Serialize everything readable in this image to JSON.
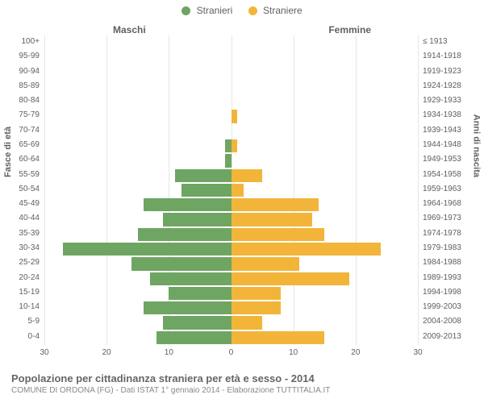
{
  "chart": {
    "type": "population-pyramid",
    "legend": [
      {
        "label": "Stranieri",
        "color": "#6ea562"
      },
      {
        "label": "Straniere",
        "color": "#f2b53a"
      }
    ],
    "column_headers": {
      "left": "Maschi",
      "right": "Femmine"
    },
    "axis_titles": {
      "left": "Fasce di età",
      "right": "Anni di nascita"
    },
    "colors": {
      "male_bar": "#6ea562",
      "female_bar": "#f2b53a",
      "grid": "#e6e6e6",
      "center_dash": "#8a6d3b",
      "text": "#606060",
      "background": "#ffffff"
    },
    "xlim": 30,
    "xtick_step": 10,
    "xticks": [
      30,
      20,
      10,
      0,
      10,
      20,
      30
    ],
    "age_bands": [
      {
        "age": "100+",
        "birth": "≤ 1913",
        "m": 0,
        "f": 0
      },
      {
        "age": "95-99",
        "birth": "1914-1918",
        "m": 0,
        "f": 0
      },
      {
        "age": "90-94",
        "birth": "1919-1923",
        "m": 0,
        "f": 0
      },
      {
        "age": "85-89",
        "birth": "1924-1928",
        "m": 0,
        "f": 0
      },
      {
        "age": "80-84",
        "birth": "1929-1933",
        "m": 0,
        "f": 0
      },
      {
        "age": "75-79",
        "birth": "1934-1938",
        "m": 0,
        "f": 1
      },
      {
        "age": "70-74",
        "birth": "1939-1943",
        "m": 0,
        "f": 0
      },
      {
        "age": "65-69",
        "birth": "1944-1948",
        "m": 1,
        "f": 1
      },
      {
        "age": "60-64",
        "birth": "1949-1953",
        "m": 1,
        "f": 0
      },
      {
        "age": "55-59",
        "birth": "1954-1958",
        "m": 9,
        "f": 5
      },
      {
        "age": "50-54",
        "birth": "1959-1963",
        "m": 8,
        "f": 2
      },
      {
        "age": "45-49",
        "birth": "1964-1968",
        "m": 14,
        "f": 14
      },
      {
        "age": "40-44",
        "birth": "1969-1973",
        "m": 11,
        "f": 13
      },
      {
        "age": "35-39",
        "birth": "1974-1978",
        "m": 15,
        "f": 15
      },
      {
        "age": "30-34",
        "birth": "1979-1983",
        "m": 27,
        "f": 24
      },
      {
        "age": "25-29",
        "birth": "1984-1988",
        "m": 16,
        "f": 11
      },
      {
        "age": "20-24",
        "birth": "1989-1993",
        "m": 13,
        "f": 19
      },
      {
        "age": "15-19",
        "birth": "1994-1998",
        "m": 10,
        "f": 8
      },
      {
        "age": "10-14",
        "birth": "1999-2003",
        "m": 14,
        "f": 8
      },
      {
        "age": "5-9",
        "birth": "2004-2008",
        "m": 11,
        "f": 5
      },
      {
        "age": "0-4",
        "birth": "2009-2013",
        "m": 12,
        "f": 15
      }
    ],
    "label_fontsize": 10,
    "legend_fontsize": 12
  },
  "footer": {
    "title": "Popolazione per cittadinanza straniera per età e sesso - 2014",
    "subtitle": "COMUNE DI ORDONA (FG) - Dati ISTAT 1° gennaio 2014 - Elaborazione TUTTITALIA.IT"
  }
}
